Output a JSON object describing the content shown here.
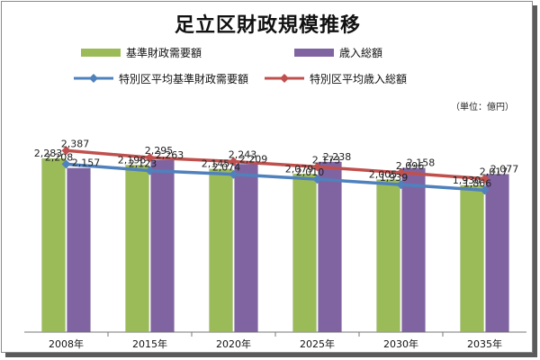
{
  "chart_data": {
    "type": "bar",
    "title": "足立区財政規模推移",
    "unit": "（単位：億円）",
    "categories": [
      "2008年",
      "2015年",
      "2020年",
      "2025年",
      "2030年",
      "2035年"
    ],
    "ylim": [
      0,
      2600
    ],
    "grid": false,
    "legend_position": "top",
    "series": [
      {
        "name": "基準財政需要額",
        "type": "bar",
        "color": "#9bbb59",
        "values": [
          2283,
          2196,
          2145,
          2079,
          2005,
          1930
        ]
      },
      {
        "name": "歳入総額",
        "type": "bar",
        "color": "#8064a2",
        "values": [
          2157,
          2263,
          2209,
          2238,
          2158,
          2077
        ]
      },
      {
        "name": "特別区平均基準財政需要額",
        "type": "line",
        "color": "#4f81bd",
        "values": [
          2208,
          2123,
          2074,
          2010,
          1939,
          1866
        ]
      },
      {
        "name": "特別区平均歳入総額",
        "type": "line",
        "color": "#c0504d",
        "values": [
          2387,
          2295,
          2243,
          2173,
          2096,
          2017
        ]
      }
    ]
  }
}
